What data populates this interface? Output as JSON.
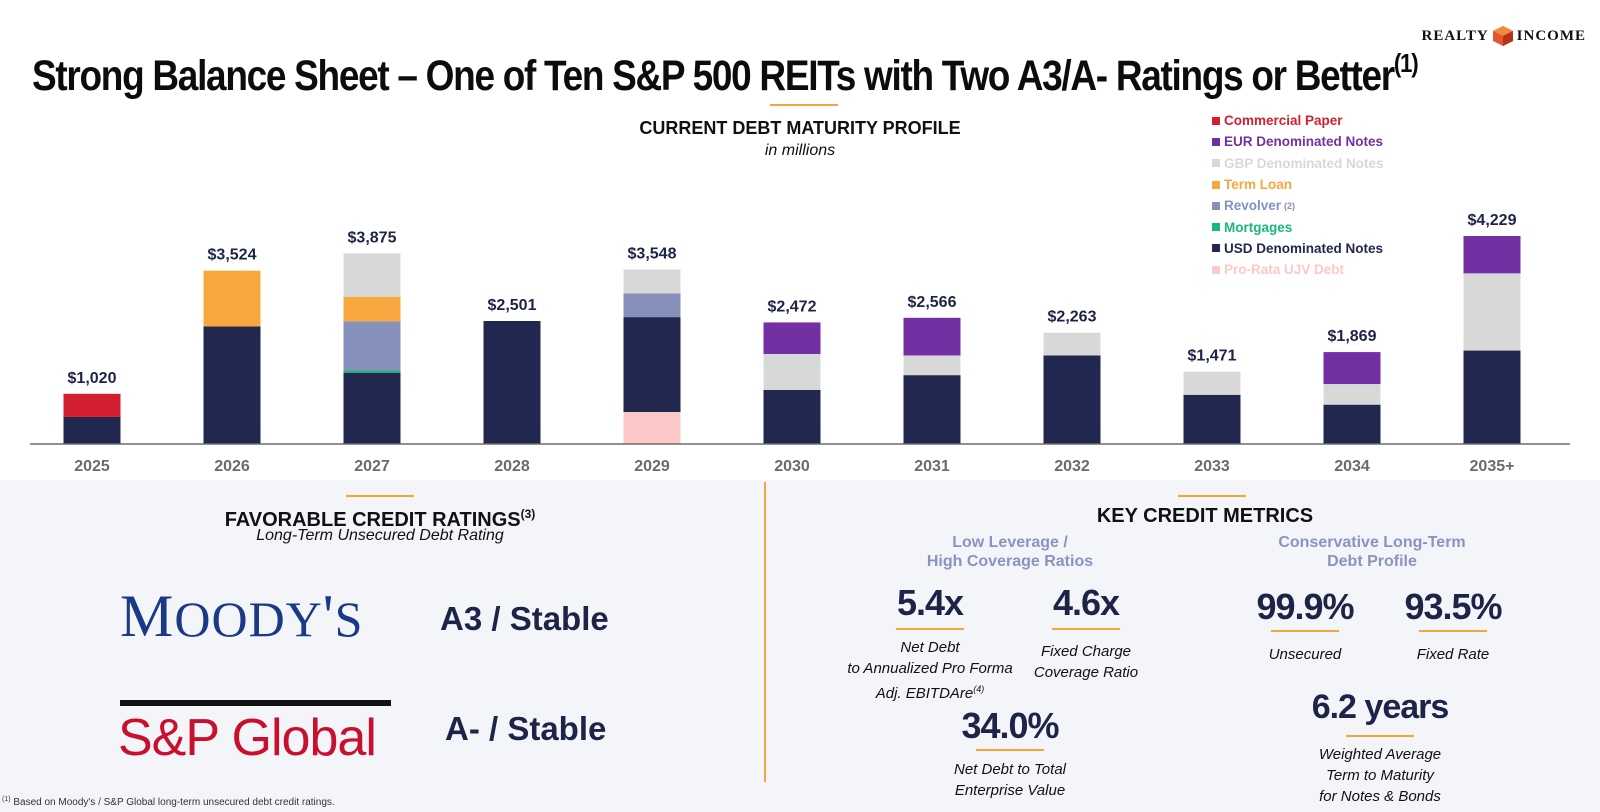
{
  "logo": {
    "left_text": "REALTY",
    "right_text": "INCOME"
  },
  "title": {
    "text": "Strong Balance Sheet – One of Ten S&P 500 REITs with Two A3/A- Ratings or Better",
    "sup": "(1)"
  },
  "chart_data": {
    "type": "bar",
    "stacked": true,
    "title": "CURRENT DEBT MATURITY PROFILE",
    "subtitle": "in millions",
    "categories": [
      "2025",
      "2026",
      "2027",
      "2028",
      "2029",
      "2030",
      "2031",
      "2032",
      "2033",
      "2034",
      "2035+"
    ],
    "totals": [
      1020,
      3524,
      3875,
      2501,
      3548,
      2472,
      2566,
      2263,
      1471,
      1869,
      4229
    ],
    "total_labels": [
      "$1,020",
      "$3,524",
      "$3,875",
      "$2,501",
      "$3,548",
      "$2,472",
      "$2,566",
      "$2,263",
      "$1,471",
      "$1,869",
      "$4,229"
    ],
    "series": [
      {
        "name": "Pro-Rata UJV Debt",
        "color": "#fdc8c8",
        "values": [
          0,
          0,
          0,
          0,
          650,
          0,
          0,
          0,
          0,
          0,
          0
        ]
      },
      {
        "name": "USD Denominated Notes",
        "color": "#222750",
        "values": [
          550,
          2390,
          1450,
          2501,
          1930,
          1100,
          1400,
          1800,
          1000,
          800,
          1900
        ]
      },
      {
        "name": "Mortgages",
        "color": "#1ab67c",
        "values": [
          0,
          0,
          45,
          0,
          0,
          0,
          0,
          0,
          0,
          0,
          0
        ]
      },
      {
        "name": "Revolver",
        "label_sup": "(2)",
        "color": "#8690bb",
        "values": [
          0,
          0,
          1000,
          0,
          480,
          0,
          0,
          0,
          0,
          0,
          0
        ]
      },
      {
        "name": "Term Loan",
        "color": "#f8a73e",
        "values": [
          0,
          1134,
          500,
          0,
          0,
          0,
          0,
          0,
          0,
          0,
          0
        ]
      },
      {
        "name": "GBP Denominated Notes",
        "color": "#d8d8d8",
        "values": [
          0,
          0,
          880,
          0,
          488,
          730,
          400,
          463,
          471,
          419,
          1569
        ]
      },
      {
        "name": "EUR Denominated Notes",
        "color": "#7330a2",
        "values": [
          0,
          0,
          0,
          0,
          0,
          642,
          766,
          0,
          0,
          650,
          760
        ]
      },
      {
        "name": "Commercial Paper",
        "color": "#d31f2f",
        "values": [
          470,
          0,
          0,
          0,
          0,
          0,
          0,
          0,
          0,
          0,
          0
        ]
      }
    ],
    "legend_order": [
      {
        "name": "Commercial Paper",
        "color": "#d31f2f"
      },
      {
        "name": "EUR Denominated Notes",
        "color": "#7330a2"
      },
      {
        "name": "GBP Denominated Notes",
        "color": "#d8d8d8"
      },
      {
        "name": "Term Loan",
        "color": "#f8a73e"
      },
      {
        "name": "Revolver",
        "color": "#8690bb",
        "sup": "(2)"
      },
      {
        "name": "Mortgages",
        "color": "#1ab67c"
      },
      {
        "name": "USD Denominated Notes",
        "color": "#222750"
      },
      {
        "name": "Pro-Rata UJV Debt",
        "color": "#fdc8c8"
      }
    ],
    "ylim": [
      0,
      4229
    ],
    "grid": false,
    "legend": "top-right"
  },
  "ratings": {
    "title": "FAVORABLE CREDIT RATINGS",
    "title_sup": "(3)",
    "subtitle": "Long-Term Unsecured Debt Rating",
    "moodys": {
      "name": "MOODY'S",
      "rating": "A3 / Stable"
    },
    "sp": {
      "name": "S&P Global",
      "rating": "A- / Stable"
    }
  },
  "metrics": {
    "title": "KEY CREDIT METRICS",
    "left_heading": [
      "Low Leverage /",
      "High Coverage Ratios"
    ],
    "right_heading": [
      "Conservative Long-Term",
      "Debt Profile"
    ],
    "items": [
      {
        "value": "5.4x",
        "desc": [
          "Net Debt",
          "to Annualized Pro Forma",
          "Adj. EBITDAre"
        ],
        "sup": "(4)"
      },
      {
        "value": "4.6x",
        "desc": [
          "Fixed Charge",
          "Coverage Ratio"
        ]
      },
      {
        "value": "34.0%",
        "desc": [
          "Net Debt to Total",
          "Enterprise Value"
        ]
      },
      {
        "value": "99.9%",
        "desc": [
          "Unsecured"
        ]
      },
      {
        "value": "93.5%",
        "desc": [
          "Fixed Rate"
        ]
      },
      {
        "value": "6.2 years",
        "desc": [
          "Weighted Average",
          "Term to Maturity",
          "for Notes & Bonds"
        ]
      }
    ]
  },
  "footnote": {
    "sup": "(1)",
    "text": " Based on Moody's / S&P Global long-term unsecured debt credit ratings."
  }
}
